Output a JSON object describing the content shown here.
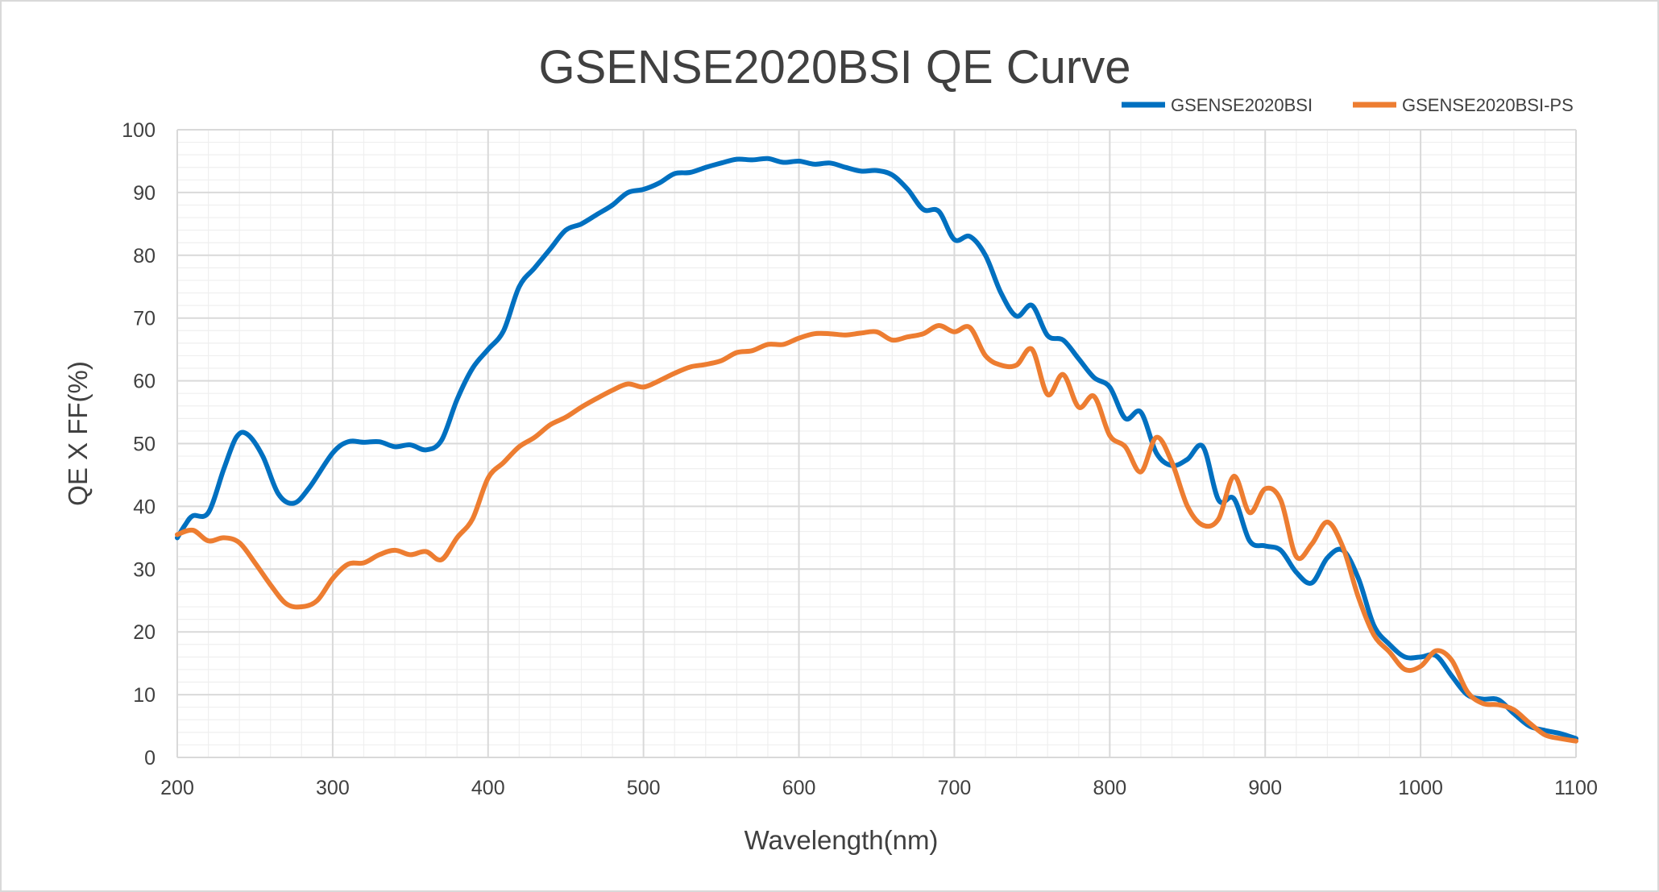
{
  "chart_data": {
    "type": "line",
    "title": "GSENSE2020BSI QE  Curve",
    "xlabel": "Wavelength(nm)",
    "ylabel": "QE X FF(%)",
    "xlim": [
      200,
      1100
    ],
    "ylim": [
      0,
      100
    ],
    "x_ticks": [
      "200",
      "300",
      "400",
      "500",
      "600",
      "700",
      "800",
      "900",
      "1000",
      "1100"
    ],
    "y_ticks": [
      "0",
      "10",
      "20",
      "30",
      "40",
      "50",
      "60",
      "70",
      "80",
      "90",
      "100"
    ],
    "grid": true,
    "legend_position": "top-right",
    "series": [
      {
        "name": "GSENSE2020BSI",
        "color": "#0070c0",
        "points": [
          [
            200,
            35
          ],
          [
            205,
            37
          ],
          [
            210,
            38.5
          ],
          [
            220,
            39
          ],
          [
            230,
            46
          ],
          [
            238,
            51
          ],
          [
            245,
            51.5
          ],
          [
            255,
            48
          ],
          [
            265,
            42
          ],
          [
            275,
            40.5
          ],
          [
            285,
            43
          ],
          [
            300,
            48.5
          ],
          [
            310,
            50.3
          ],
          [
            320,
            50.2
          ],
          [
            330,
            50.3
          ],
          [
            340,
            49.5
          ],
          [
            350,
            49.8
          ],
          [
            360,
            49
          ],
          [
            370,
            50.5
          ],
          [
            380,
            57
          ],
          [
            390,
            62
          ],
          [
            400,
            65
          ],
          [
            410,
            68
          ],
          [
            420,
            75
          ],
          [
            430,
            78
          ],
          [
            440,
            81
          ],
          [
            450,
            84
          ],
          [
            460,
            85
          ],
          [
            470,
            86.5
          ],
          [
            480,
            88
          ],
          [
            490,
            90
          ],
          [
            500,
            90.5
          ],
          [
            510,
            91.5
          ],
          [
            520,
            93
          ],
          [
            530,
            93.2
          ],
          [
            540,
            94
          ],
          [
            550,
            94.7
          ],
          [
            560,
            95.3
          ],
          [
            570,
            95.2
          ],
          [
            580,
            95.4
          ],
          [
            590,
            94.8
          ],
          [
            600,
            95
          ],
          [
            610,
            94.5
          ],
          [
            620,
            94.7
          ],
          [
            630,
            94
          ],
          [
            640,
            93.4
          ],
          [
            650,
            93.5
          ],
          [
            660,
            92.8
          ],
          [
            670,
            90.5
          ],
          [
            680,
            87.3
          ],
          [
            690,
            87
          ],
          [
            700,
            82.5
          ],
          [
            710,
            83
          ],
          [
            720,
            80
          ],
          [
            730,
            74
          ],
          [
            740,
            70.3
          ],
          [
            750,
            72
          ],
          [
            760,
            67.2
          ],
          [
            770,
            66.5
          ],
          [
            780,
            63.5
          ],
          [
            790,
            60.5
          ],
          [
            800,
            59
          ],
          [
            810,
            54
          ],
          [
            820,
            55
          ],
          [
            830,
            48.5
          ],
          [
            840,
            46.5
          ],
          [
            850,
            47.5
          ],
          [
            860,
            49.5
          ],
          [
            870,
            41
          ],
          [
            880,
            41.2
          ],
          [
            890,
            34.5
          ],
          [
            900,
            33.7
          ],
          [
            910,
            33
          ],
          [
            920,
            29.5
          ],
          [
            930,
            27.8
          ],
          [
            940,
            31.8
          ],
          [
            950,
            33
          ],
          [
            960,
            28.5
          ],
          [
            970,
            21
          ],
          [
            980,
            18
          ],
          [
            990,
            16
          ],
          [
            1000,
            16
          ],
          [
            1010,
            16.2
          ],
          [
            1020,
            13
          ],
          [
            1030,
            10
          ],
          [
            1040,
            9.3
          ],
          [
            1050,
            9.2
          ],
          [
            1060,
            7
          ],
          [
            1070,
            5
          ],
          [
            1080,
            4.3
          ],
          [
            1090,
            3.8
          ],
          [
            1100,
            3
          ]
        ]
      },
      {
        "name": "GSENSE2020BSI-PS",
        "color": "#ed7d31",
        "points": [
          [
            200,
            35.5
          ],
          [
            210,
            36.2
          ],
          [
            220,
            34.5
          ],
          [
            230,
            35
          ],
          [
            240,
            34.2
          ],
          [
            250,
            31
          ],
          [
            260,
            27.5
          ],
          [
            270,
            24.5
          ],
          [
            280,
            24
          ],
          [
            290,
            25
          ],
          [
            300,
            28.5
          ],
          [
            310,
            30.8
          ],
          [
            320,
            31
          ],
          [
            330,
            32.3
          ],
          [
            340,
            33
          ],
          [
            350,
            32.3
          ],
          [
            360,
            32.8
          ],
          [
            370,
            31.5
          ],
          [
            380,
            35
          ],
          [
            390,
            38
          ],
          [
            400,
            44.5
          ],
          [
            410,
            47
          ],
          [
            420,
            49.5
          ],
          [
            430,
            51
          ],
          [
            440,
            53
          ],
          [
            450,
            54.2
          ],
          [
            460,
            55.8
          ],
          [
            470,
            57.2
          ],
          [
            480,
            58.5
          ],
          [
            490,
            59.5
          ],
          [
            500,
            59
          ],
          [
            510,
            60
          ],
          [
            520,
            61.2
          ],
          [
            530,
            62.2
          ],
          [
            540,
            62.6
          ],
          [
            550,
            63.2
          ],
          [
            560,
            64.5
          ],
          [
            570,
            64.8
          ],
          [
            580,
            65.8
          ],
          [
            590,
            65.8
          ],
          [
            600,
            66.8
          ],
          [
            610,
            67.5
          ],
          [
            620,
            67.5
          ],
          [
            630,
            67.3
          ],
          [
            640,
            67.6
          ],
          [
            650,
            67.8
          ],
          [
            660,
            66.5
          ],
          [
            670,
            67
          ],
          [
            680,
            67.5
          ],
          [
            690,
            68.8
          ],
          [
            700,
            67.8
          ],
          [
            710,
            68.5
          ],
          [
            720,
            64
          ],
          [
            730,
            62.5
          ],
          [
            740,
            62.5
          ],
          [
            750,
            65
          ],
          [
            760,
            57.8
          ],
          [
            770,
            61
          ],
          [
            780,
            55.8
          ],
          [
            790,
            57.5
          ],
          [
            800,
            51.3
          ],
          [
            810,
            49.5
          ],
          [
            820,
            45.5
          ],
          [
            830,
            51
          ],
          [
            840,
            47
          ],
          [
            850,
            40
          ],
          [
            860,
            37
          ],
          [
            870,
            38
          ],
          [
            880,
            44.8
          ],
          [
            890,
            39
          ],
          [
            900,
            42.8
          ],
          [
            910,
            41
          ],
          [
            920,
            32
          ],
          [
            930,
            34
          ],
          [
            940,
            37.5
          ],
          [
            950,
            33.5
          ],
          [
            960,
            25.5
          ],
          [
            970,
            19.5
          ],
          [
            980,
            16.8
          ],
          [
            990,
            14
          ],
          [
            1000,
            14.5
          ],
          [
            1010,
            17
          ],
          [
            1020,
            15.5
          ],
          [
            1030,
            10.5
          ],
          [
            1040,
            8.6
          ],
          [
            1050,
            8.4
          ],
          [
            1060,
            7.6
          ],
          [
            1070,
            5.5
          ],
          [
            1080,
            3.6
          ],
          [
            1090,
            3
          ],
          [
            1100,
            2.6
          ]
        ]
      }
    ]
  }
}
